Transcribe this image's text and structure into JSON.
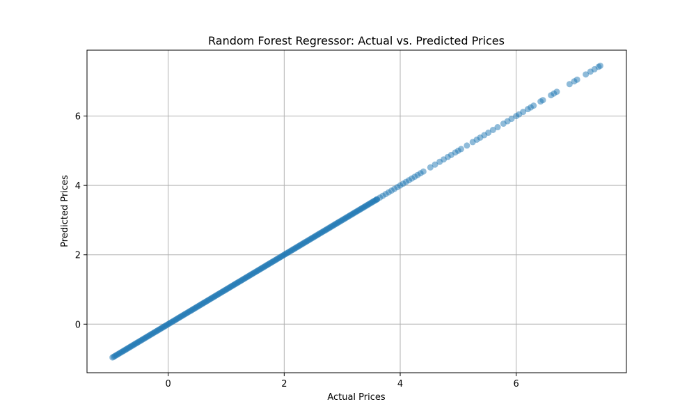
{
  "chart_data": {
    "type": "scatter",
    "title": "Random Forest Regressor: Actual vs. Predicted Prices",
    "xlabel": "Actual Prices",
    "ylabel": "Predicted Prices",
    "xlim": [
      -1.4,
      7.9
    ],
    "ylim": [
      -1.4,
      7.9
    ],
    "xticks": [
      0,
      2,
      4,
      6
    ],
    "yticks": [
      0,
      2,
      4,
      6
    ],
    "grid": true,
    "marker_color": "#1f77b4",
    "marker_alpha": 0.5,
    "point_groups": [
      {
        "x_start": -0.96,
        "x_end": 3.6,
        "step": 0.02,
        "y_equals_x": true
      },
      {
        "x_start": 3.6,
        "x_end": 4.4,
        "step": 0.05,
        "y_equals_x": true
      }
    ],
    "points": [
      [
        4.52,
        4.52
      ],
      [
        4.6,
        4.6
      ],
      [
        4.68,
        4.68
      ],
      [
        4.75,
        4.75
      ],
      [
        4.82,
        4.82
      ],
      [
        4.88,
        4.88
      ],
      [
        4.95,
        4.95
      ],
      [
        5.0,
        5.0
      ],
      [
        5.05,
        5.05
      ],
      [
        5.15,
        5.15
      ],
      [
        5.25,
        5.25
      ],
      [
        5.32,
        5.32
      ],
      [
        5.38,
        5.38
      ],
      [
        5.45,
        5.45
      ],
      [
        5.52,
        5.52
      ],
      [
        5.6,
        5.6
      ],
      [
        5.68,
        5.68
      ],
      [
        5.78,
        5.78
      ],
      [
        5.85,
        5.85
      ],
      [
        5.92,
        5.92
      ],
      [
        6.0,
        6.0
      ],
      [
        6.05,
        6.05
      ],
      [
        6.12,
        6.12
      ],
      [
        6.2,
        6.2
      ],
      [
        6.25,
        6.25
      ],
      [
        6.3,
        6.3
      ],
      [
        6.42,
        6.42
      ],
      [
        6.46,
        6.46
      ],
      [
        6.6,
        6.6
      ],
      [
        6.65,
        6.65
      ],
      [
        6.7,
        6.7
      ],
      [
        6.92,
        6.92
      ],
      [
        7.0,
        7.0
      ],
      [
        7.05,
        7.05
      ],
      [
        7.2,
        7.2
      ],
      [
        7.28,
        7.28
      ],
      [
        7.35,
        7.35
      ],
      [
        7.42,
        7.42
      ],
      [
        7.45,
        7.45
      ]
    ]
  }
}
